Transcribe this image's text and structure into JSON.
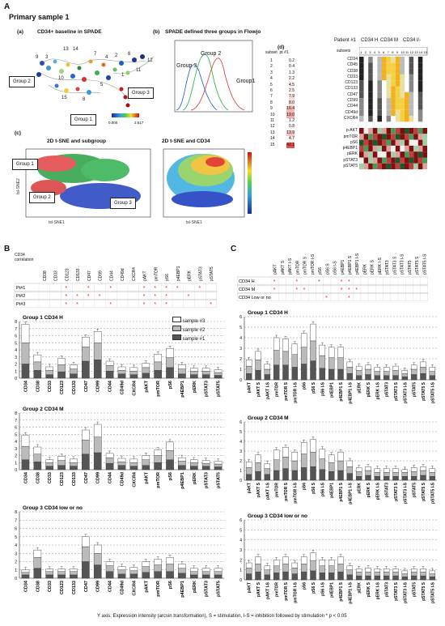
{
  "panel_A": "A",
  "title": "Primary sample 1",
  "a": {
    "label": "(a)",
    "title": "CD34+ baseline in SPADE",
    "scale": [
      "0.000",
      "2.517"
    ],
    "nodes": [
      "13",
      "14",
      "9",
      "3",
      "7",
      "4",
      "2",
      "1",
      "5",
      "10",
      "6",
      "11",
      "12",
      "15",
      "8"
    ],
    "groups": [
      "Group 2",
      "Group 3",
      "Group 1"
    ]
  },
  "b": {
    "label": "(b)",
    "title": "SPADE defined three groups in Flowjo",
    "curves": [
      "Group 2",
      "Group 3",
      "Group1"
    ]
  },
  "c": {
    "label": "(c)",
    "title": "2D t-SNE and subgroup",
    "title2": "2D t-SNE and CD34",
    "groups": [
      "Group 1",
      "Group 2",
      "Group 3"
    ],
    "xlabel": "tsl-SNE1",
    "ylabel": "tsl-SNE2"
  },
  "d": {
    "label": "(d)",
    "patient": "Patient #1",
    "col_groups": [
      "CD34 H",
      "CD34 M",
      "CD34 l/-"
    ],
    "subset_label": "subsets",
    "subset_hdr": [
      "subset",
      "pt #1"
    ],
    "subsets": [
      "1",
      "2",
      "3",
      "4",
      "5",
      "6",
      "7",
      "8",
      "9",
      "10",
      "11",
      "12",
      "13",
      "14",
      "15"
    ],
    "pcts": [
      "0.2",
      "0.4",
      "1.3",
      "2.2",
      "4.5",
      "2.5",
      "7.9",
      "8.0",
      "16.4",
      "19.0",
      "1.2",
      "0.8",
      "13.9",
      "4.7",
      "42.1"
    ],
    "row_groups": [
      "Group 1",
      "Group 2",
      "Group 3"
    ],
    "markers": [
      "CD34",
      "CD45",
      "CD38",
      "CD33",
      "CD123",
      "CD133",
      "CD47",
      "CD99",
      "CD44",
      "CD49d",
      "CXCR4"
    ],
    "phospho": [
      "p-AKT",
      "pmTOR",
      "pS6",
      "p4EBP1",
      "pERK",
      "pSTAT3",
      "pSTAT5"
    ]
  },
  "B": {
    "label": "B",
    "corr_label": "CD34 correlation",
    "cols": [
      "CD38",
      "CD33",
      "CD123",
      "CD133",
      "CD47",
      "CD99",
      "CD44",
      "CD49d",
      "CXCR4",
      "pAKT",
      "pmTOR",
      "pS6",
      "p4EBP1",
      "pERK",
      "pSTAT3",
      "pSTAT5"
    ],
    "rows": [
      "Pt#1",
      "Pt#2",
      "Pt#3"
    ],
    "legend": [
      "sample #3",
      "sample #2",
      "sample #1"
    ]
  },
  "C": {
    "label": "C",
    "cols": [
      "pAKT",
      "pAKT S",
      "pAKT I-S",
      "pmTOR",
      "pmTOR S",
      "pmTOR I-S",
      "pS6",
      "pS6 S",
      "pS6 I-S",
      "p4EBP1",
      "p4EBP1 S",
      "p4EBP1 I-S",
      "pERK",
      "pERK S",
      "pERK I-S",
      "pSTAT3",
      "pSTAT3 S",
      "pSTAT3 I-S",
      "pSTAT5",
      "pSTAT5 S",
      "pSTAT5 I-S"
    ],
    "rows": [
      "CD34 H",
      "CD34 M",
      "CD34 Low or no"
    ]
  },
  "footer": "Y axis: Expression intensity (arcsin transformation), S = stimulation, I-S = inhibition followed  by stimulation * p < 0.05",
  "chart_data": [
    {
      "type": "bar",
      "title": "Group 1  CD34 H",
      "ylim": [
        0,
        8
      ],
      "categories": [
        "CD34",
        "CD38",
        "CD33",
        "CD123",
        "CD133",
        "CD47",
        "CD99",
        "CD44",
        "CD49d",
        "CXCR4",
        "pAKT",
        "pmTOR",
        "pS6",
        "p4EBP1",
        "pERK",
        "pSTAT3",
        "pSTAT5"
      ],
      "series": [
        {
          "name": "sample #1",
          "values": [
            2.0,
            1.1,
            0.5,
            0.9,
            0.6,
            2.4,
            2.6,
            1.0,
            0.6,
            0.5,
            0.7,
            1.1,
            1.5,
            0.6,
            0.5,
            0.5,
            0.4
          ]
        },
        {
          "name": "sample #2",
          "values": [
            3.0,
            1.2,
            0.6,
            1.0,
            0.7,
            2.0,
            2.4,
            0.8,
            0.5,
            0.5,
            0.8,
            1.2,
            1.4,
            0.7,
            0.5,
            0.5,
            0.4
          ]
        },
        {
          "name": "sample #3",
          "values": [
            2.6,
            1.0,
            0.5,
            0.9,
            0.6,
            1.4,
            1.6,
            0.6,
            0.5,
            0.5,
            0.6,
            1.1,
            1.3,
            0.6,
            0.4,
            0.4,
            0.4
          ]
        }
      ]
    },
    {
      "type": "bar",
      "title": "Group 2  CD34 M",
      "ylim": [
        0,
        8
      ],
      "categories": [
        "CD34",
        "CD38",
        "CD33",
        "CD123",
        "CD133",
        "CD47",
        "CD99",
        "CD44",
        "CD49d",
        "CXCR4",
        "pAKT",
        "pmTOR",
        "pS6",
        "p4EBP1",
        "pERK",
        "pSTAT3",
        "pSTAT5"
      ],
      "series": [
        {
          "name": "sample #1",
          "values": [
            1.4,
            1.1,
            0.5,
            0.6,
            0.5,
            2.2,
            2.4,
            0.9,
            0.6,
            0.5,
            0.6,
            1.0,
            1.4,
            0.6,
            0.5,
            0.5,
            0.4
          ]
        },
        {
          "name": "sample #2",
          "values": [
            1.9,
            1.1,
            0.5,
            0.7,
            0.5,
            2.0,
            2.2,
            0.8,
            0.5,
            0.5,
            0.8,
            1.0,
            1.3,
            0.6,
            0.5,
            0.4,
            0.4
          ]
        },
        {
          "name": "sample #3",
          "values": [
            1.6,
            1.0,
            0.4,
            0.6,
            0.5,
            1.4,
            1.8,
            0.6,
            0.5,
            0.5,
            0.6,
            0.8,
            1.2,
            0.5,
            0.4,
            0.4,
            0.4
          ]
        }
      ]
    },
    {
      "type": "bar",
      "title": "Group 3 CD34 low or no",
      "ylim": [
        0,
        8
      ],
      "categories": [
        "CD34",
        "CD38",
        "CD33",
        "CD123",
        "CD133",
        "CD47",
        "CD99",
        "CD44",
        "CD49d",
        "CXCR4",
        "pAKT",
        "pmTOR",
        "pS6",
        "p4EBP1",
        "pERK",
        "pSTAT3",
        "pSTAT5"
      ],
      "series": [
        {
          "name": "sample #1",
          "values": [
            0.4,
            1.2,
            0.4,
            0.4,
            0.4,
            2.0,
            1.6,
            0.8,
            0.5,
            0.5,
            0.7,
            0.8,
            0.8,
            0.6,
            0.4,
            0.4,
            0.4
          ]
        },
        {
          "name": "sample #2",
          "values": [
            0.3,
            1.3,
            0.4,
            0.4,
            0.4,
            1.8,
            1.4,
            0.7,
            0.5,
            0.4,
            0.7,
            0.8,
            0.9,
            0.6,
            0.4,
            0.4,
            0.4
          ]
        },
        {
          "name": "sample #3",
          "values": [
            0.3,
            0.9,
            0.3,
            0.3,
            0.3,
            1.2,
            1.0,
            0.5,
            0.4,
            0.4,
            0.6,
            0.7,
            0.8,
            0.5,
            0.4,
            0.4,
            0.4
          ]
        }
      ]
    },
    {
      "type": "bar",
      "title": "Group 1  CD34 H",
      "ylim": [
        0,
        6
      ],
      "categories": [
        "pAKT",
        "pAKT S",
        "pAKT I-S",
        "pmTOR",
        "pmTOR S",
        "pmTOR I-S",
        "pS6",
        "pS6 S",
        "pS6 I-S",
        "p4EBP1",
        "p4EBP1 S",
        "p4EBP1 I-S",
        "pERK",
        "pERK S",
        "pERK I-S",
        "pSTAT3",
        "pSTAT3 S",
        "pSTAT3 I-S",
        "pSTAT5",
        "pSTAT5 S",
        "pSTAT5 I-S"
      ],
      "series": [
        {
          "name": "sample #1",
          "values": [
            0.6,
            0.9,
            0.5,
            1.4,
            1.4,
            1.2,
            1.5,
            1.8,
            1.1,
            1.0,
            1.0,
            0.6,
            0.4,
            0.5,
            0.4,
            0.4,
            0.4,
            0.3,
            0.5,
            0.6,
            0.4
          ]
        },
        {
          "name": "sample #2",
          "values": [
            0.7,
            1.0,
            0.5,
            1.4,
            1.3,
            1.2,
            1.6,
            1.9,
            1.2,
            1.1,
            1.1,
            0.6,
            0.5,
            0.5,
            0.4,
            0.4,
            0.5,
            0.3,
            0.5,
            0.6,
            0.4
          ]
        },
        {
          "name": "sample #3",
          "values": [
            0.6,
            0.8,
            0.5,
            1.2,
            1.2,
            1.0,
            1.3,
            1.6,
            1.0,
            1.0,
            1.0,
            0.5,
            0.4,
            0.4,
            0.4,
            0.4,
            0.4,
            0.3,
            0.4,
            0.5,
            0.4
          ]
        }
      ]
    },
    {
      "type": "bar",
      "title": "Group 2  CD34 M",
      "ylim": [
        0,
        6
      ],
      "categories": [
        "pAKT",
        "pAKT S",
        "pAKT I-S",
        "pmTOR",
        "pmTOR S",
        "pmTOR I-S",
        "pS6",
        "pS6 S",
        "pS6 I-S",
        "p4EBP1",
        "p4EBP1 S",
        "p4EBP1 I-S",
        "pERK",
        "pERK S",
        "pERK I-S",
        "pSTAT3",
        "pSTAT3 S",
        "pSTAT3 I-S",
        "pSTAT5",
        "pSTAT5 S",
        "pSTAT5 I-S"
      ],
      "series": [
        {
          "name": "sample #1",
          "values": [
            0.6,
            0.9,
            0.6,
            1.0,
            1.2,
            1.0,
            1.3,
            1.4,
            1.1,
            0.9,
            1.0,
            0.7,
            0.4,
            0.5,
            0.4,
            0.4,
            0.4,
            0.4,
            0.4,
            0.5,
            0.4
          ]
        },
        {
          "name": "sample #2",
          "values": [
            0.7,
            0.9,
            0.6,
            1.1,
            1.2,
            1.0,
            1.4,
            1.5,
            1.1,
            0.9,
            1.0,
            0.7,
            0.5,
            0.5,
            0.4,
            0.4,
            0.4,
            0.4,
            0.5,
            0.5,
            0.4
          ]
        },
        {
          "name": "sample #3",
          "values": [
            0.6,
            0.8,
            0.5,
            1.0,
            1.0,
            0.9,
            1.2,
            1.3,
            1.0,
            0.8,
            0.9,
            0.6,
            0.4,
            0.4,
            0.4,
            0.4,
            0.4,
            0.3,
            0.4,
            0.4,
            0.4
          ]
        }
      ]
    },
    {
      "type": "bar",
      "title": "Group 3 CD34 low or no",
      "ylim": [
        0,
        6
      ],
      "categories": [
        "pAKT",
        "pAKT S",
        "pAKT I-S",
        "pmTOR",
        "pmTOR S",
        "pmTOR I-S",
        "pS6",
        "pS6 S",
        "pS6 I-S",
        "p4EBP1",
        "p4EBP1 S",
        "p4EBP1 I-S",
        "pERK",
        "pERK S",
        "pERK I-S",
        "pSTAT3",
        "pSTAT3 S",
        "pSTAT3 I-S",
        "pSTAT5",
        "pSTAT5 S",
        "pSTAT5 I-S"
      ],
      "series": [
        {
          "name": "sample #1",
          "values": [
            0.6,
            0.8,
            0.5,
            0.7,
            0.8,
            0.6,
            0.8,
            0.9,
            0.7,
            0.7,
            0.8,
            0.5,
            0.4,
            0.4,
            0.4,
            0.4,
            0.4,
            0.3,
            0.4,
            0.4,
            0.3
          ]
        },
        {
          "name": "sample #2",
          "values": [
            0.6,
            0.8,
            0.5,
            0.7,
            0.8,
            0.6,
            0.8,
            1.0,
            0.7,
            0.7,
            0.8,
            0.5,
            0.4,
            0.4,
            0.4,
            0.4,
            0.4,
            0.3,
            0.4,
            0.4,
            0.3
          ]
        },
        {
          "name": "sample #3",
          "values": [
            0.5,
            0.7,
            0.4,
            0.6,
            0.7,
            0.5,
            0.7,
            0.8,
            0.6,
            0.6,
            0.7,
            0.4,
            0.3,
            0.4,
            0.3,
            0.3,
            0.3,
            0.3,
            0.3,
            0.3,
            0.3
          ]
        }
      ]
    }
  ]
}
